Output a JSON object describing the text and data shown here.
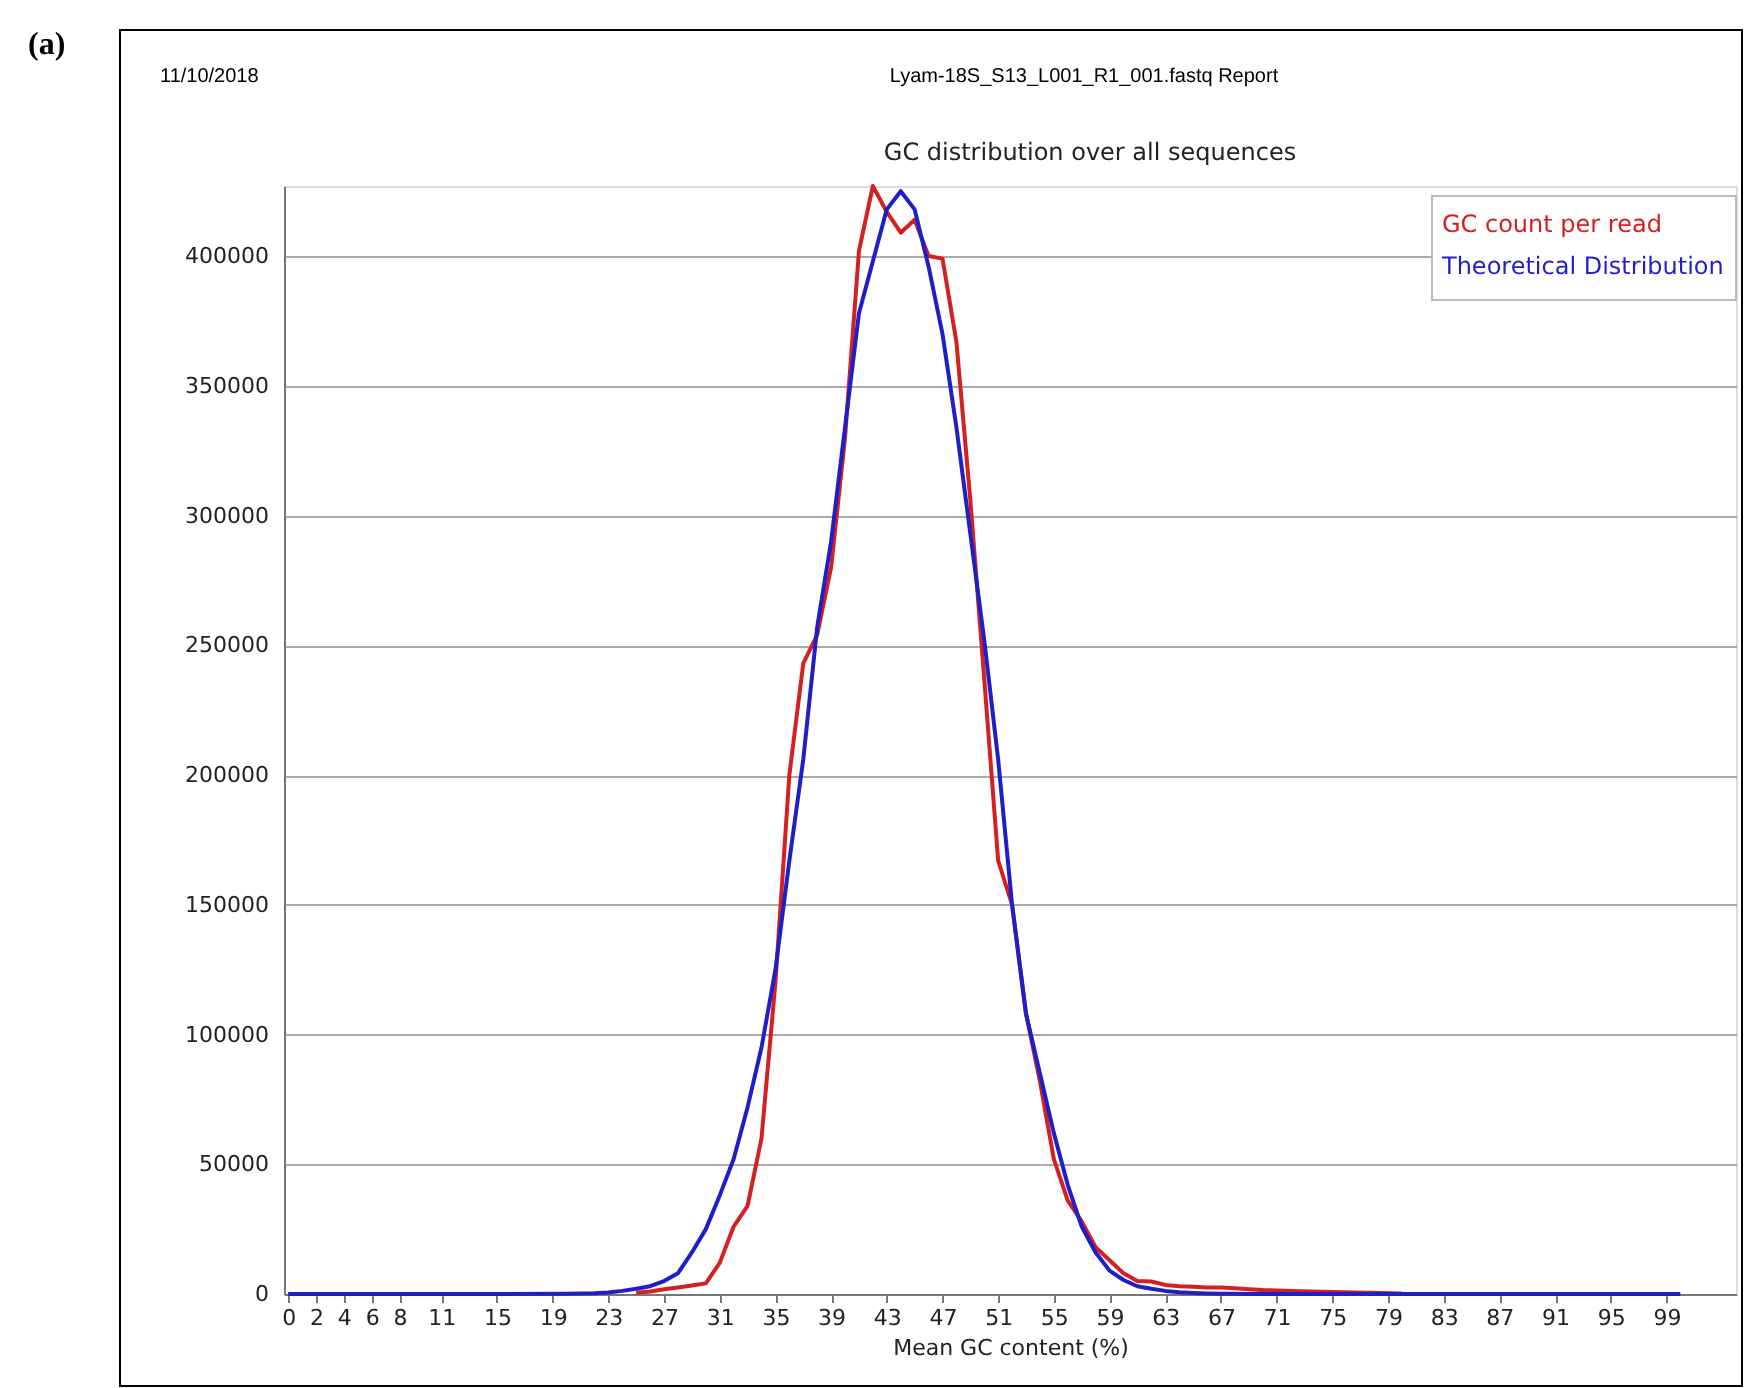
{
  "chart_data": {
    "type": "line",
    "title": "GC distribution over all sequences",
    "xlabel": "Mean GC content (%)",
    "annotations": [
      "(a)",
      "11/10/2018",
      "Lyam-18S_S13_L001_R1_001.fastq Report"
    ],
    "xlim": [
      -0.3,
      104
    ],
    "xticks": [
      0,
      2,
      4,
      6,
      8,
      11,
      15,
      19,
      23,
      27,
      31,
      35,
      39,
      43,
      47,
      51,
      55,
      59,
      63,
      67,
      71,
      75,
      79,
      83,
      87,
      91,
      95,
      99
    ],
    "ylim": [
      0,
      427000
    ],
    "yticks": [
      0,
      50000,
      100000,
      150000,
      200000,
      250000,
      300000,
      350000,
      400000
    ],
    "grid": "y",
    "legend": "top right",
    "marker": "none",
    "line_style": "solid",
    "series": [
      {
        "name": "GC count per read",
        "color": "#d42020",
        "x": [
          25,
          26,
          27,
          28,
          29,
          30,
          31,
          32,
          33,
          34,
          35,
          36,
          37,
          38,
          39,
          40,
          41,
          42,
          43,
          44,
          45,
          46,
          47,
          48,
          49,
          50,
          51,
          52,
          53,
          54,
          55,
          56,
          57,
          58,
          59,
          60,
          61,
          62,
          63,
          64,
          65,
          66,
          67,
          68,
          69,
          70,
          72,
          75,
          80
        ],
        "values": [
          500,
          1000,
          1800,
          2500,
          3300,
          4100,
          12000,
          26000,
          34000,
          60000,
          120000,
          200000,
          243000,
          254000,
          280000,
          330000,
          402000,
          427000,
          417000,
          409000,
          414000,
          400000,
          399000,
          367000,
          306000,
          237000,
          167000,
          150000,
          108000,
          82000,
          52000,
          36000,
          28000,
          18000,
          13000,
          8000,
          5000,
          4800,
          3500,
          3000,
          2800,
          2500,
          2500,
          2200,
          1800,
          1500,
          1200,
          800,
          200
        ]
      },
      {
        "name": "Theoretical Distribution",
        "color": "#1f1fc8",
        "x": [
          0,
          5,
          10,
          15,
          20,
          21,
          22,
          23,
          24,
          25,
          26,
          27,
          28,
          29,
          30,
          31,
          32,
          33,
          34,
          35,
          36,
          37,
          38,
          39,
          40,
          41,
          42,
          43,
          44,
          45,
          46,
          47,
          48,
          49,
          50,
          51,
          52,
          53,
          54,
          55,
          56,
          57,
          58,
          59,
          60,
          61,
          62,
          63,
          64,
          65,
          66,
          67,
          68,
          69,
          70,
          75,
          80,
          85,
          90,
          95,
          100
        ],
        "values": [
          0,
          0,
          0,
          0,
          100,
          200,
          300,
          600,
          1200,
          2000,
          3000,
          5000,
          8000,
          16000,
          25000,
          38000,
          52000,
          72000,
          95000,
          125000,
          167000,
          206000,
          257000,
          290000,
          334000,
          378000,
          398000,
          418000,
          425000,
          418000,
          396000,
          370000,
          334000,
          293000,
          252000,
          206000,
          150000,
          108000,
          85000,
          62000,
          42000,
          26000,
          16000,
          9000,
          5400,
          3000,
          2000,
          1200,
          700,
          400,
          200,
          100,
          100,
          0,
          0,
          0,
          0,
          0,
          0,
          0,
          0
        ]
      }
    ]
  }
}
